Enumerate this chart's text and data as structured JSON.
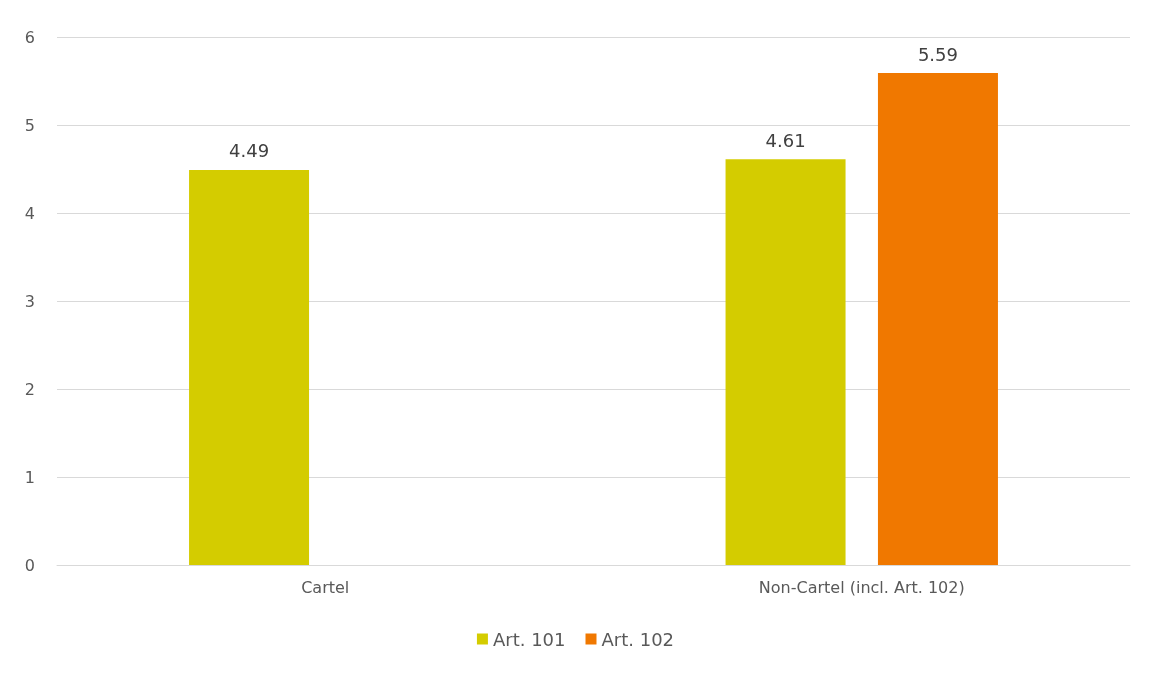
{
  "chart_data": {
    "type": "bar",
    "categories": [
      "Cartel",
      "Non-Cartel (incl. Art. 102)"
    ],
    "series": [
      {
        "name": "Art. 101",
        "color": "#d4cc00",
        "values": [
          4.49,
          4.61
        ]
      },
      {
        "name": "Art. 102",
        "color": "#f07800",
        "values": [
          null,
          5.59
        ]
      }
    ],
    "ylim": [
      0,
      6
    ],
    "yticks": [
      0,
      1,
      2,
      3,
      4,
      5,
      6
    ],
    "grid": "y",
    "legend": "bottom",
    "data_labels": true
  }
}
